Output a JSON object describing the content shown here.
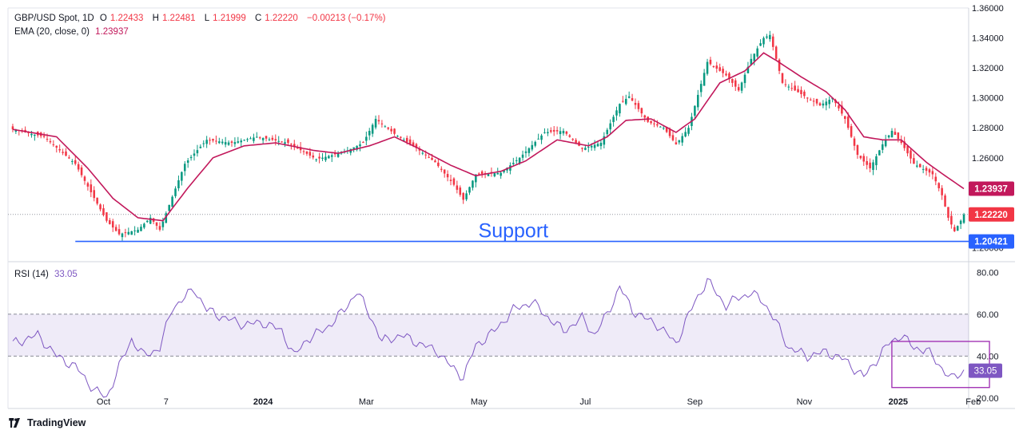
{
  "header": {
    "symbol": "GBP/USD Spot, 1D",
    "open_label": "O",
    "open": "1.22433",
    "high_label": "H",
    "high": "1.22481",
    "low_label": "L",
    "low": "1.21999",
    "close_label": "C",
    "close": "1.22220",
    "change": "−0.00213 (−0.17%)",
    "ema_label": "EMA (20, close, 0)",
    "ema_value": "1.23937",
    "rsi_label": "RSI (14)",
    "rsi_value": "33.05"
  },
  "footer": {
    "brand": "TradingView"
  },
  "colors": {
    "up": "#089981",
    "down": "#f23645",
    "ema": "#c2185b",
    "rsi": "#7e57c2",
    "support": "#2962ff",
    "rsi_band": "#7e57c2"
  },
  "chart_data": [
    {
      "type": "line",
      "subtype": "candlestick_with_ema",
      "title": "GBP/USD Spot, 1D",
      "ylim": [
        1.196,
        1.36
      ],
      "y_ticks": [
        1.2,
        1.22,
        1.24,
        1.26,
        1.28,
        1.3,
        1.32,
        1.34,
        1.36
      ],
      "y_tick_labels": [
        "1.20000",
        "1.22000",
        "1.24000",
        "1.26000",
        "1.28000",
        "1.30000",
        "1.32000",
        "1.34000",
        "1.36000"
      ],
      "x_tick_labels": [
        "Oct",
        "7",
        "2024",
        "Mar",
        "May",
        "Jul",
        "Sep",
        "Nov",
        "2025",
        "Feb"
      ],
      "x_tick_index": [
        29,
        49,
        80,
        113,
        149,
        183,
        218,
        253,
        283,
        307
      ],
      "price_path": [
        [
          0,
          1.279
        ],
        [
          10,
          1.274
        ],
        [
          20,
          1.256
        ],
        [
          30,
          1.218
        ],
        [
          34,
          1.209
        ],
        [
          40,
          1.212
        ],
        [
          44,
          1.22
        ],
        [
          47,
          1.212
        ],
        [
          55,
          1.256
        ],
        [
          62,
          1.272
        ],
        [
          70,
          1.27
        ],
        [
          78,
          1.274
        ],
        [
          88,
          1.27
        ],
        [
          97,
          1.259
        ],
        [
          106,
          1.264
        ],
        [
          112,
          1.27
        ],
        [
          116,
          1.286
        ],
        [
          122,
          1.276
        ],
        [
          128,
          1.268
        ],
        [
          135,
          1.257
        ],
        [
          141,
          1.242
        ],
        [
          144,
          1.232
        ],
        [
          148,
          1.249
        ],
        [
          156,
          1.25
        ],
        [
          162,
          1.26
        ],
        [
          170,
          1.277
        ],
        [
          176,
          1.278
        ],
        [
          182,
          1.266
        ],
        [
          188,
          1.27
        ],
        [
          194,
          1.296
        ],
        [
          197,
          1.301
        ],
        [
          203,
          1.284
        ],
        [
          208,
          1.28
        ],
        [
          212,
          1.269
        ],
        [
          216,
          1.28
        ],
        [
          222,
          1.324
        ],
        [
          228,
          1.315
        ],
        [
          232,
          1.305
        ],
        [
          236,
          1.326
        ],
        [
          240,
          1.34
        ],
        [
          242,
          1.342
        ],
        [
          246,
          1.31
        ],
        [
          254,
          1.3
        ],
        [
          258,
          1.295
        ],
        [
          262,
          1.3
        ],
        [
          266,
          1.286
        ],
        [
          270,
          1.262
        ],
        [
          274,
          1.253
        ],
        [
          278,
          1.269
        ],
        [
          281,
          1.278
        ],
        [
          284,
          1.27
        ],
        [
          288,
          1.256
        ],
        [
          294,
          1.249
        ],
        [
          297,
          1.235
        ],
        [
          299,
          1.22
        ],
        [
          301,
          1.211
        ],
        [
          303,
          1.218
        ],
        [
          304,
          1.2222
        ]
      ],
      "ema_path": [
        [
          0,
          1.279
        ],
        [
          14,
          1.274
        ],
        [
          24,
          1.253
        ],
        [
          32,
          1.233
        ],
        [
          40,
          1.22
        ],
        [
          48,
          1.218
        ],
        [
          56,
          1.24
        ],
        [
          64,
          1.26
        ],
        [
          74,
          1.268
        ],
        [
          84,
          1.27
        ],
        [
          96,
          1.265
        ],
        [
          104,
          1.263
        ],
        [
          114,
          1.268
        ],
        [
          122,
          1.274
        ],
        [
          130,
          1.266
        ],
        [
          140,
          1.255
        ],
        [
          148,
          1.248
        ],
        [
          156,
          1.251
        ],
        [
          164,
          1.258
        ],
        [
          174,
          1.272
        ],
        [
          184,
          1.268
        ],
        [
          190,
          1.274
        ],
        [
          196,
          1.285
        ],
        [
          204,
          1.286
        ],
        [
          212,
          1.277
        ],
        [
          218,
          1.286
        ],
        [
          226,
          1.31
        ],
        [
          234,
          1.318
        ],
        [
          240,
          1.33
        ],
        [
          244,
          1.325
        ],
        [
          252,
          1.314
        ],
        [
          260,
          1.304
        ],
        [
          266,
          1.292
        ],
        [
          272,
          1.274
        ],
        [
          278,
          1.272
        ],
        [
          284,
          1.272
        ],
        [
          292,
          1.257
        ],
        [
          298,
          1.248
        ],
        [
          304,
          1.2394
        ]
      ],
      "series": [
        {
          "name": "GBP/USD Spot",
          "last": 1.2222,
          "open": 1.22433,
          "high": 1.22481,
          "low": 1.21999,
          "close": 1.2222
        },
        {
          "name": "EMA (20, close, 0)",
          "last": 1.23937
        }
      ],
      "price_badges": [
        {
          "value": 1.23937,
          "label": "1.23937",
          "color": "#c2185b"
        },
        {
          "value": 1.2222,
          "label": "1.22220",
          "color": "#f23645"
        },
        {
          "value": 1.20421,
          "label": "1.20421",
          "color": "#2962ff"
        }
      ],
      "annotations": [
        {
          "type": "hline",
          "value": 1.20421,
          "from_index": 20,
          "text": "Support",
          "text_at_index": 160
        }
      ]
    },
    {
      "type": "line",
      "title": "RSI (14)",
      "ylim": [
        15,
        82
      ],
      "y_ticks": [
        20,
        40,
        60,
        80
      ],
      "y_tick_labels": [
        "20.00",
        "40.00",
        "60.00",
        "80.00"
      ],
      "band": [
        40,
        60
      ],
      "last": 33.05,
      "last_label": "33.05",
      "values_path": [
        [
          0,
          46
        ],
        [
          8,
          50
        ],
        [
          14,
          40
        ],
        [
          20,
          35
        ],
        [
          26,
          24
        ],
        [
          30,
          20
        ],
        [
          34,
          35
        ],
        [
          38,
          48
        ],
        [
          42,
          40
        ],
        [
          47,
          44
        ],
        [
          51,
          63
        ],
        [
          55,
          68
        ],
        [
          58,
          72
        ],
        [
          62,
          62
        ],
        [
          68,
          58
        ],
        [
          74,
          55
        ],
        [
          80,
          56
        ],
        [
          86,
          52
        ],
        [
          90,
          40
        ],
        [
          94,
          48
        ],
        [
          100,
          53
        ],
        [
          106,
          62
        ],
        [
          110,
          71
        ],
        [
          114,
          60
        ],
        [
          118,
          47
        ],
        [
          124,
          50
        ],
        [
          130,
          46
        ],
        [
          136,
          42
        ],
        [
          140,
          35
        ],
        [
          144,
          30
        ],
        [
          148,
          45
        ],
        [
          154,
          52
        ],
        [
          160,
          62
        ],
        [
          166,
          66
        ],
        [
          170,
          60
        ],
        [
          176,
          52
        ],
        [
          182,
          58
        ],
        [
          186,
          50
        ],
        [
          190,
          60
        ],
        [
          194,
          73
        ],
        [
          198,
          62
        ],
        [
          202,
          58
        ],
        [
          206,
          55
        ],
        [
          212,
          46
        ],
        [
          218,
          66
        ],
        [
          222,
          76
        ],
        [
          228,
          64
        ],
        [
          232,
          68
        ],
        [
          236,
          70
        ],
        [
          240,
          66
        ],
        [
          244,
          56
        ],
        [
          248,
          44
        ],
        [
          254,
          40
        ],
        [
          260,
          42
        ],
        [
          266,
          38
        ],
        [
          272,
          30
        ],
        [
          276,
          38
        ],
        [
          280,
          46
        ],
        [
          284,
          50
        ],
        [
          288,
          44
        ],
        [
          292,
          43
        ],
        [
          296,
          36
        ],
        [
          300,
          29
        ],
        [
          304,
          33
        ]
      ],
      "annotations": [
        {
          "type": "rect",
          "from_index": 282,
          "to_index": 304,
          "y_range": [
            25,
            47
          ]
        }
      ]
    }
  ]
}
